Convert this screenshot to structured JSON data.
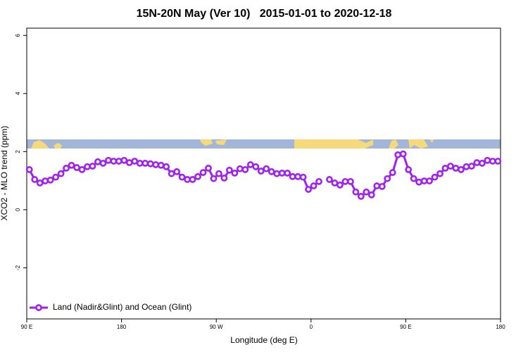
{
  "chart_data": {
    "type": "line",
    "title": "15N-20N May (Ver 10)   2015-01-01 to 2020-12-18",
    "x_label": "Longitude (deg E)",
    "y_label": "XCO2 - MLO trend (ppm)",
    "xlim": [
      90,
      540
    ],
    "ylim": [
      -3.76,
      6.25
    ],
    "xticks": [
      {
        "value": 90,
        "label": "90 E"
      },
      180,
      {
        "value": 270,
        "label": "90 W"
      },
      {
        "value": 360,
        "label": "0"
      },
      {
        "value": 450,
        "label": "90 E"
      },
      {
        "value": 540,
        "label": "180"
      }
    ],
    "yticks": [
      -2,
      0,
      2,
      4,
      6
    ],
    "grid": false,
    "legend_position": "bottom-left",
    "x": [
      92.5,
      97.5,
      102.5,
      107.5,
      112.5,
      117.5,
      122.5,
      127.5,
      132.5,
      137.5,
      142.5,
      147.5,
      152.5,
      157.5,
      162.5,
      167.5,
      172.5,
      177.5,
      182.5,
      187.5,
      192.5,
      197.5,
      202.5,
      207.5,
      212.5,
      217.5,
      222.5,
      227.5,
      232.5,
      237.5,
      242.5,
      247.5,
      252.5,
      257.5,
      262.5,
      267.5,
      272.5,
      277.5,
      282.5,
      287.5,
      292.5,
      297.5,
      302.5,
      307.5,
      312.5,
      317.5,
      322.5,
      327.5,
      332.5,
      337.5,
      342.5,
      347.5,
      352.5,
      357.5,
      362.5,
      367.5,
      372.5,
      377.5,
      382.5,
      387.5,
      392.5,
      397.5,
      402.5,
      407.5,
      412.5,
      417.5,
      422.5,
      427.5,
      432.5,
      437.5,
      442.5,
      447.5,
      452.5,
      457.5,
      462.5,
      467.5,
      472.5,
      477.5,
      482.5,
      487.5,
      492.5,
      497.5,
      502.5,
      507.5,
      512.5,
      517.5,
      522.5,
      527.5,
      532.5,
      537.5
    ],
    "series": [
      {
        "name": "Land (Nadir&Glint) and Ocean (Glint)",
        "color": "#a020f0",
        "values": [
          1.38,
          1.04,
          0.92,
          0.99,
          1.02,
          1.12,
          1.24,
          1.43,
          1.53,
          1.45,
          1.38,
          1.48,
          1.5,
          1.65,
          1.6,
          1.7,
          1.67,
          1.67,
          1.7,
          1.62,
          1.67,
          1.6,
          1.6,
          1.58,
          1.55,
          1.53,
          1.48,
          1.24,
          1.31,
          1.12,
          1.04,
          1.04,
          1.14,
          1.28,
          1.43,
          1.07,
          1.24,
          1.09,
          1.36,
          1.26,
          1.41,
          1.38,
          1.55,
          1.48,
          1.33,
          1.41,
          1.31,
          1.24,
          1.26,
          1.26,
          1.14,
          1.14,
          1.12,
          0.7,
          0.82,
          0.97,
          null,
          1.04,
          0.92,
          0.85,
          0.97,
          0.97,
          0.61,
          0.46,
          0.61,
          0.51,
          0.82,
          0.8,
          1.07,
          1.28,
          1.89,
          1.92,
          1.38,
          1.07,
          0.95,
          0.99,
          0.99,
          1.12,
          1.24,
          1.43,
          1.5,
          1.43,
          1.38,
          1.48,
          1.5,
          1.62,
          1.6,
          1.7,
          1.67,
          1.67
        ]
      }
    ]
  }
}
